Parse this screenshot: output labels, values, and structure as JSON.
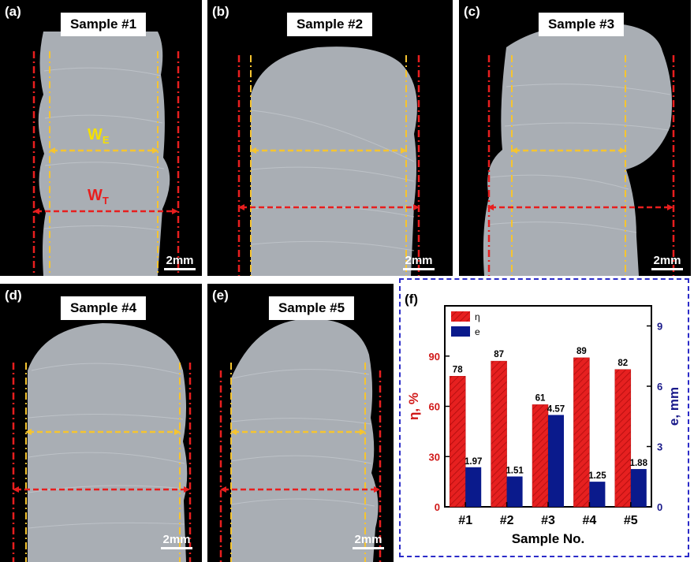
{
  "panels": [
    {
      "label": "(a)",
      "title": "Sample #1",
      "scale": "2mm",
      "we_label": "W",
      "we_sub": "E",
      "wt_label": "W",
      "wt_sub": "T"
    },
    {
      "label": "(b)",
      "title": "Sample #2",
      "scale": "2mm"
    },
    {
      "label": "(c)",
      "title": "Sample #3",
      "scale": "2mm"
    },
    {
      "label": "(d)",
      "title": "Sample #4",
      "scale": "2mm"
    },
    {
      "label": "(e)",
      "title": "Sample #5",
      "scale": "2mm"
    }
  ],
  "colors": {
    "we_line": "#f5c430",
    "wt_line": "#e81e1e",
    "wall": "#a7adb3",
    "eta_bar": "#e62020",
    "e_bar": "#0a1a8c",
    "left_axis": "#d01818",
    "right_axis": "#1a1a8a"
  },
  "chart_data": {
    "panel_label": "(f)",
    "type": "bar",
    "categories": [
      "#1",
      "#2",
      "#3",
      "#4",
      "#5"
    ],
    "series": [
      {
        "name": "η",
        "axis": "left",
        "values": [
          78,
          87,
          61,
          89,
          82
        ],
        "labels": [
          "78",
          "87",
          "61",
          "89",
          "82"
        ]
      },
      {
        "name": "e",
        "axis": "right",
        "values": [
          1.97,
          1.51,
          4.57,
          1.25,
          1.88
        ],
        "labels": [
          "1.97",
          "1.51",
          "4.57",
          "1.25",
          "1.88"
        ]
      }
    ],
    "xlabel": "Sample No.",
    "ylabel_left": "η, %",
    "ylabel_right": "e, mm",
    "ylim_left": [
      0,
      120
    ],
    "yticks_left": [
      "0",
      "30",
      "60",
      "90"
    ],
    "ylim_right": [
      0,
      10
    ],
    "yticks_right": [
      "0",
      "3",
      "6",
      "9"
    ],
    "legend_position": "top-left"
  }
}
